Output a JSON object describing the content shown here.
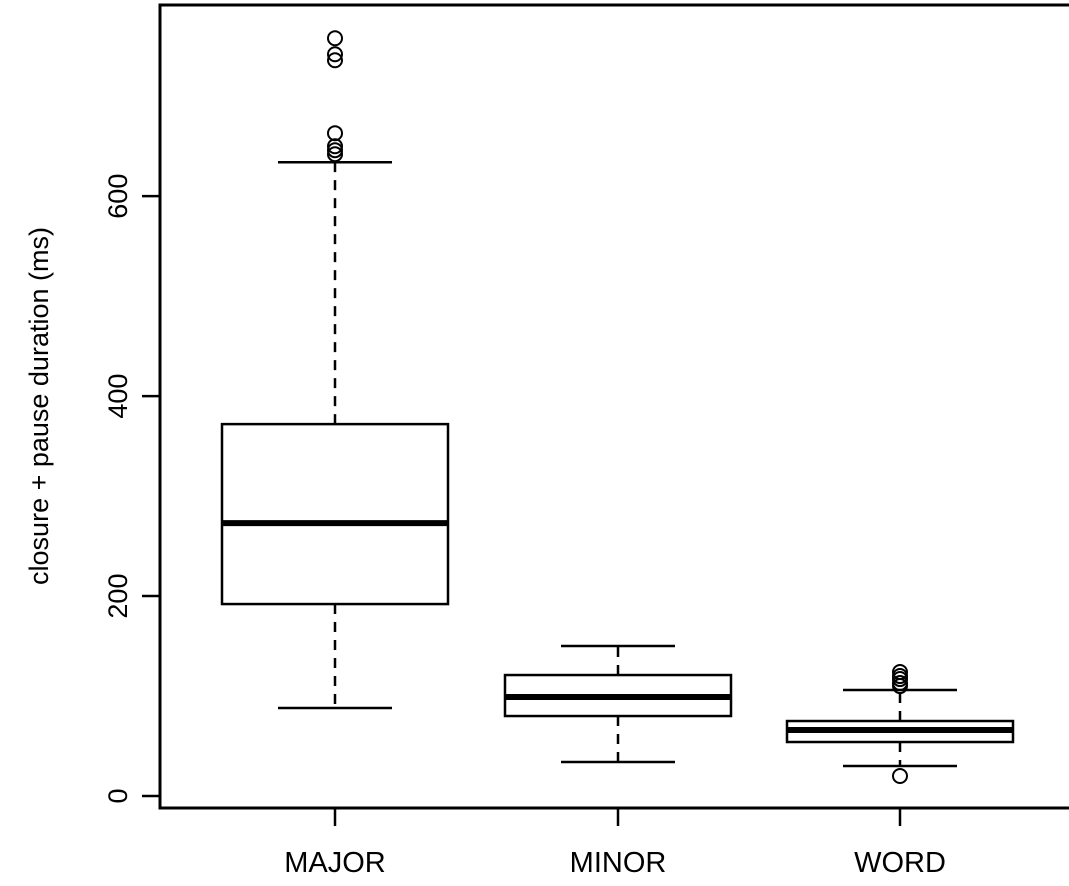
{
  "chart_data": {
    "type": "boxplot",
    "title": "",
    "xlabel": "",
    "ylabel": "closure + pause duration (ms)",
    "ylim": [
      0,
      790
    ],
    "yticks": [
      0,
      200,
      400,
      600
    ],
    "yticklabels": [
      "0",
      "200",
      "400",
      "600"
    ],
    "grid": false,
    "legend": "none",
    "groups": [
      {
        "label": "MAJOR",
        "whisker_low": 88,
        "q1": 192,
        "median": 273,
        "q3": 372,
        "whisker_high": 634,
        "outliers": [
          642,
          646,
          650,
          663,
          736,
          742,
          758
        ]
      },
      {
        "label": "MINOR",
        "whisker_low": 34,
        "q1": 80,
        "median": 99,
        "q3": 121,
        "whisker_high": 150,
        "outliers": []
      },
      {
        "label": "WORD",
        "whisker_low": 30,
        "q1": 54,
        "median": 66,
        "q3": 75,
        "whisker_high": 106,
        "outliers": [
          20,
          110,
          113,
          117,
          120,
          124
        ]
      }
    ]
  }
}
